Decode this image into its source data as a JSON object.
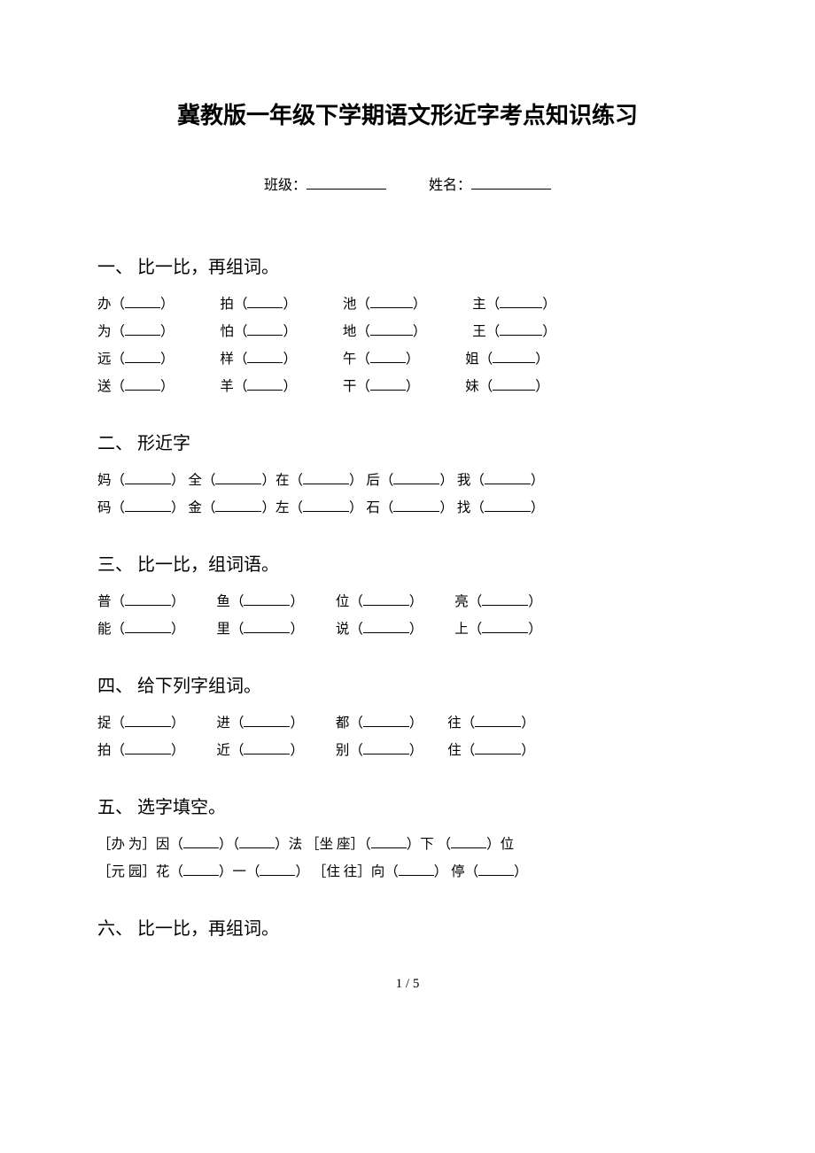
{
  "title": "冀教版一年级下学期语文形近字考点知识练习",
  "header": {
    "class_label": "班级：",
    "name_label": "姓名："
  },
  "sections": {
    "s1": {
      "title": "一、 比一比，再组词。",
      "rows": [
        [
          "办",
          "拍",
          "池",
          "主"
        ],
        [
          "为",
          "怕",
          "地",
          "王"
        ],
        [
          "远",
          "样",
          "午",
          "姐"
        ],
        [
          "送",
          "羊",
          "干",
          "妹"
        ]
      ]
    },
    "s2": {
      "title": "二、 形近字",
      "rows": [
        [
          "妈",
          "全",
          "在",
          "后",
          "我"
        ],
        [
          "码",
          "金",
          "左",
          "石",
          "找"
        ]
      ]
    },
    "s3": {
      "title": "三、 比一比，组词语。",
      "rows": [
        [
          "普",
          "鱼",
          "位",
          "亮"
        ],
        [
          "能",
          "里",
          "说",
          "上"
        ]
      ]
    },
    "s4": {
      "title": "四、 给下列字组词。",
      "rows": [
        [
          "捉",
          "进",
          "都",
          "往"
        ],
        [
          "拍",
          "近",
          "别",
          "住"
        ]
      ]
    },
    "s5": {
      "title": "五、 选字填空。",
      "rows": {
        "r1": {
          "g1": "［办  为］因",
          "g1b": "法",
          "g2": "［坐 座］",
          "g2b": "下",
          "g2c": "位"
        },
        "r2": {
          "g1": "［元  园］花",
          "g1b": "一",
          "g2": "［住  往］向",
          "g2b": "停"
        }
      }
    },
    "s6": {
      "title": "六、 比一比，再组词。"
    }
  },
  "page_num": "1 / 5"
}
